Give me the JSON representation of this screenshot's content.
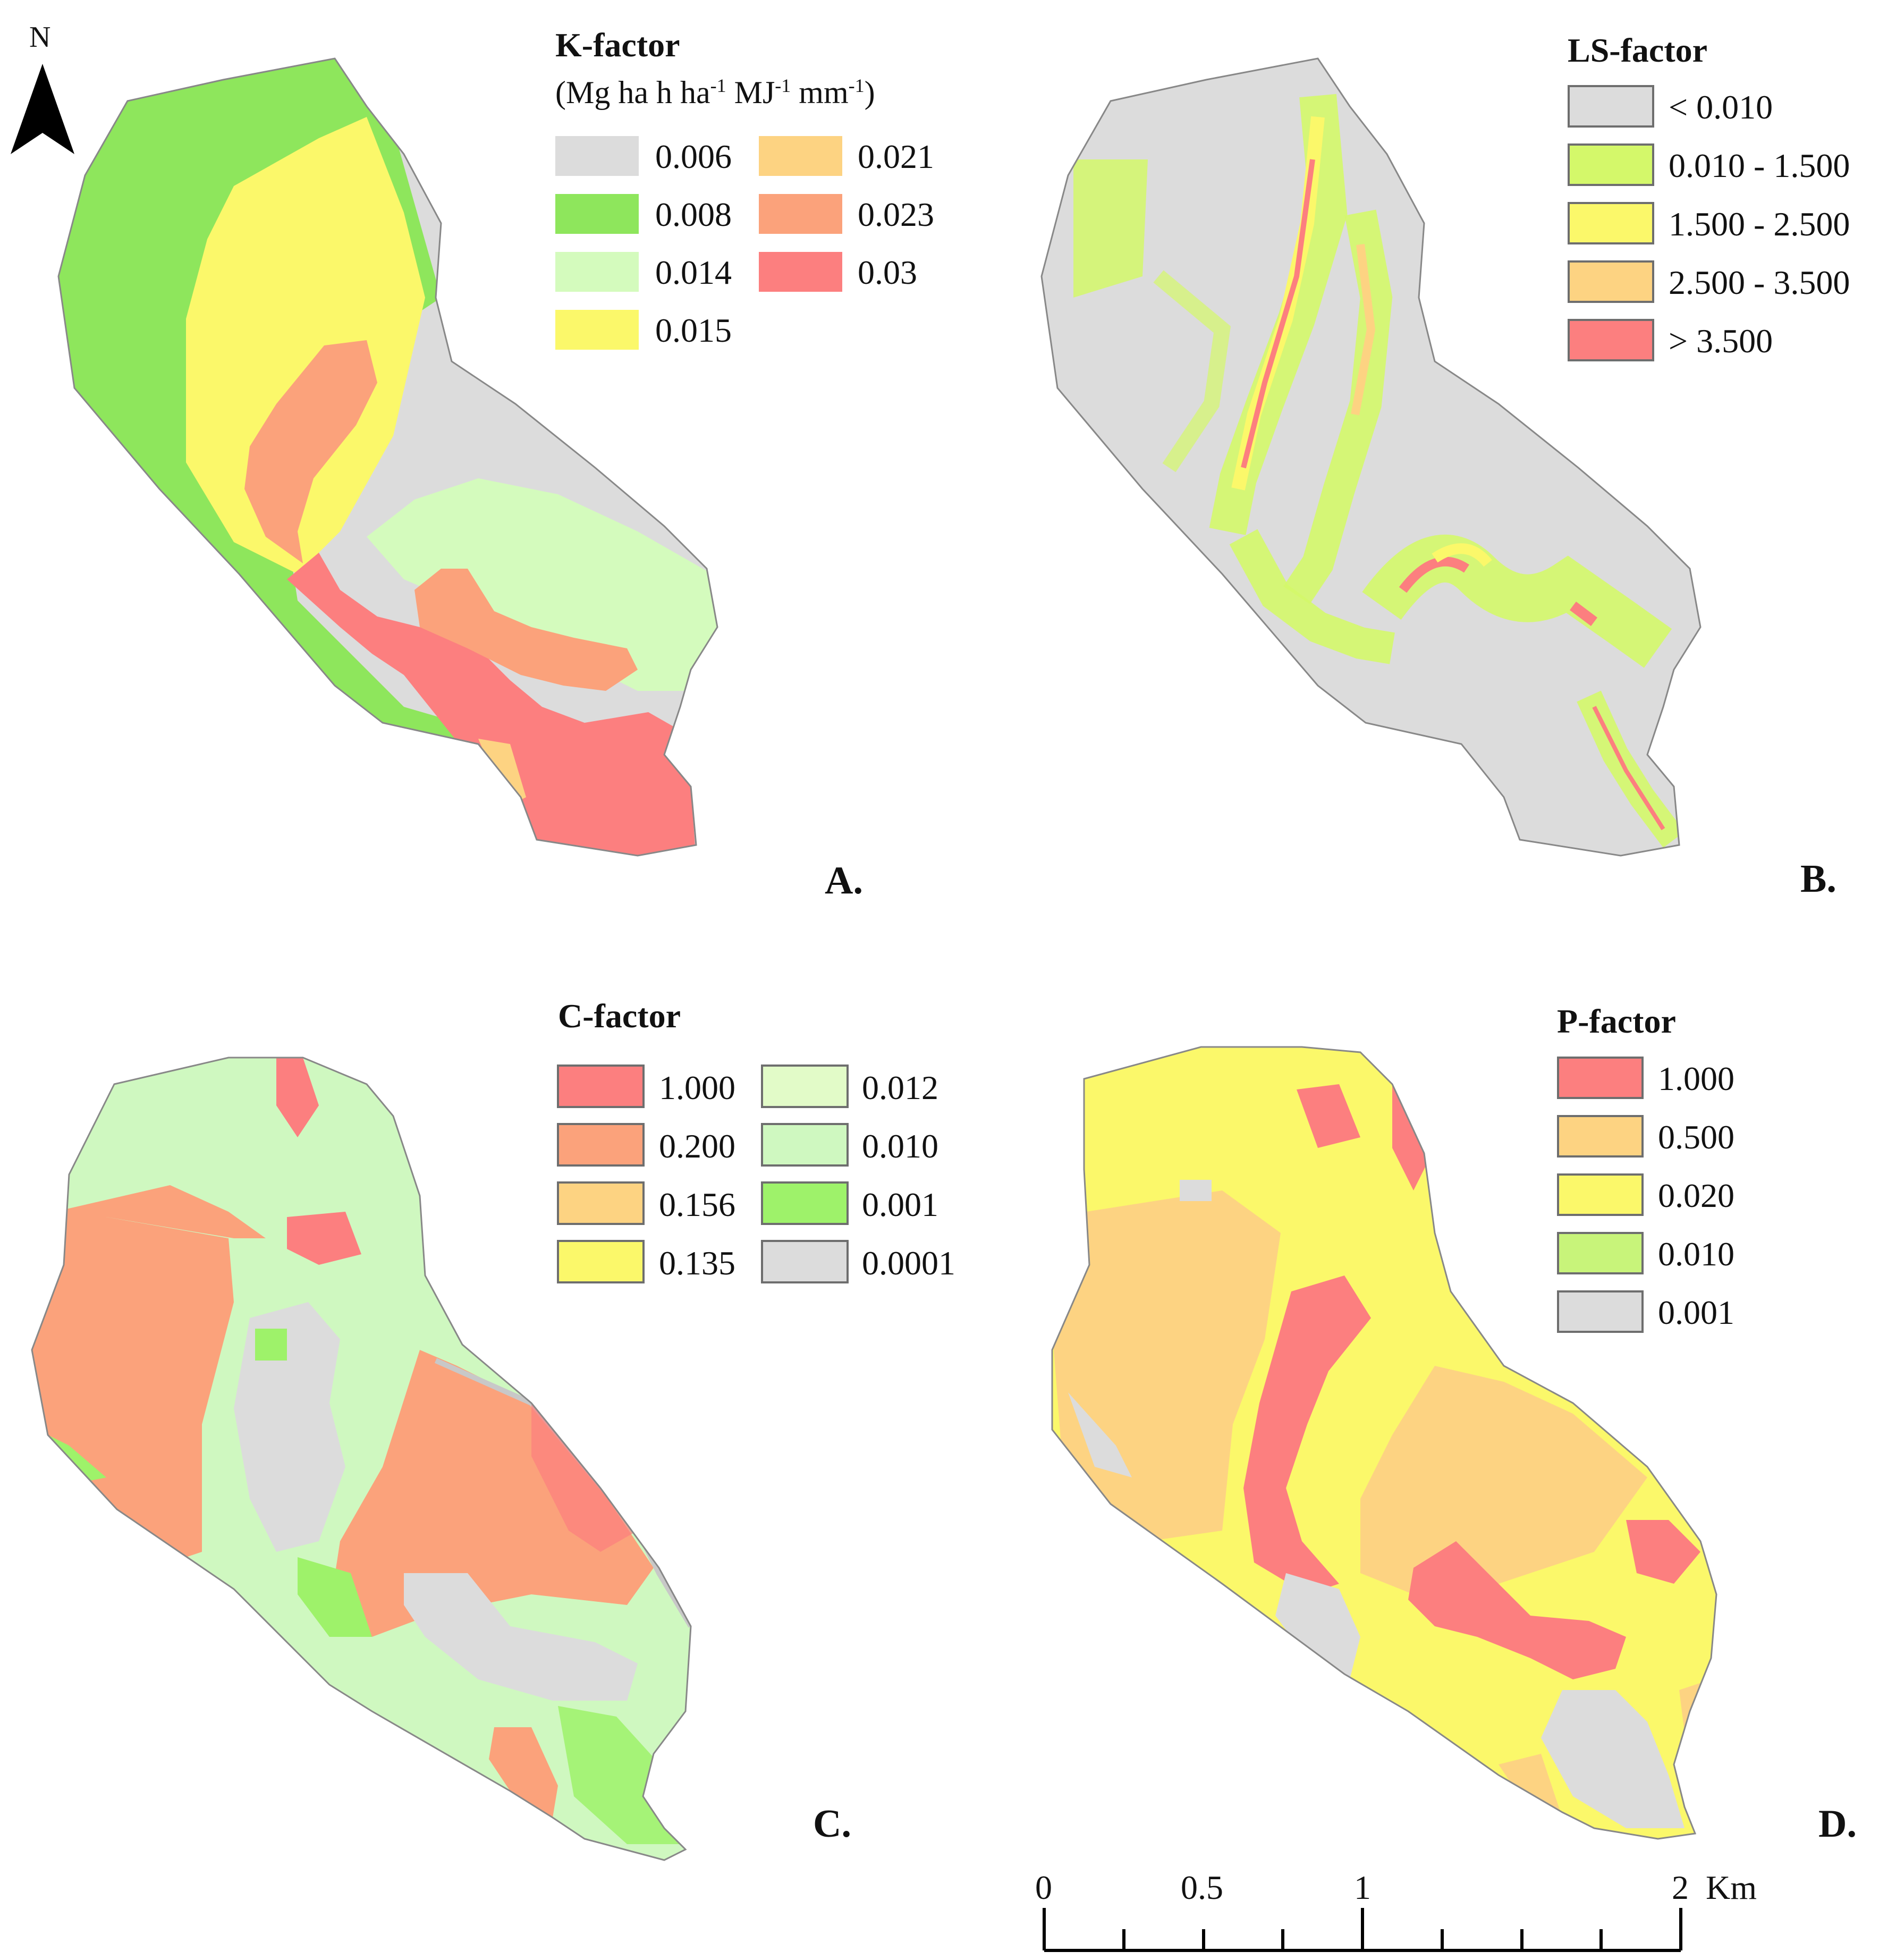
{
  "north_arrow": {
    "label": "N"
  },
  "panels": {
    "a": {
      "letter": "A.",
      "legend": {
        "title": "K-factor",
        "unit": "(Mg ha h ha-1 MJ-1 mm-1)",
        "unit_parts": [
          "(Mg ha h ha",
          "-1",
          " MJ",
          "-1",
          " mm",
          "-1",
          ")"
        ],
        "items": [
          {
            "label": "0.006",
            "color": "#dcdcdc"
          },
          {
            "label": "0.008",
            "color": "#8ee65c"
          },
          {
            "label": "0.014",
            "color": "#d4fbbd"
          },
          {
            "label": "0.015",
            "color": "#fbf86a"
          },
          {
            "label": "0.021",
            "color": "#fdd382"
          },
          {
            "label": "0.023",
            "color": "#fba27b"
          },
          {
            "label": "0.03",
            "color": "#fc7f7f"
          }
        ]
      }
    },
    "b": {
      "letter": "B.",
      "legend": {
        "title": "LS-factor",
        "items": [
          {
            "label": "< 0.010",
            "color": "#dcdcdc"
          },
          {
            "label": "0.010 - 1.500",
            "color": "#d4f86a"
          },
          {
            "label": "1.500 - 2.500",
            "color": "#fbf86a"
          },
          {
            "label": "2.500 - 3.500",
            "color": "#fdd382"
          },
          {
            "label": "> 3.500",
            "color": "#fc7f7f"
          }
        ]
      }
    },
    "c": {
      "letter": "C.",
      "legend": {
        "title": "C-factor",
        "items": [
          {
            "label": "1.000",
            "color": "#fc7f7f"
          },
          {
            "label": "0.200",
            "color": "#fba27b"
          },
          {
            "label": "0.156",
            "color": "#fdd382"
          },
          {
            "label": "0.135",
            "color": "#fbf86a"
          },
          {
            "label": "0.012",
            "color": "#e2fbc8"
          },
          {
            "label": "0.010",
            "color": "#cff8c0"
          },
          {
            "label": "0.001",
            "color": "#9ef26a"
          },
          {
            "label": "0.0001",
            "color": "#dcdcdc"
          }
        ]
      }
    },
    "d": {
      "letter": "D.",
      "legend": {
        "title": "P-factor",
        "items": [
          {
            "label": "1.000",
            "color": "#fc7f7f"
          },
          {
            "label": "0.500",
            "color": "#fdd382"
          },
          {
            "label": "0.020",
            "color": "#fbf86a"
          },
          {
            "label": "0.010",
            "color": "#c8f47a"
          },
          {
            "label": "0.001",
            "color": "#dcdcdc"
          }
        ]
      }
    }
  },
  "scale_bar": {
    "labels": [
      "0",
      "0.5",
      "1",
      "2"
    ],
    "unit": "Km"
  }
}
